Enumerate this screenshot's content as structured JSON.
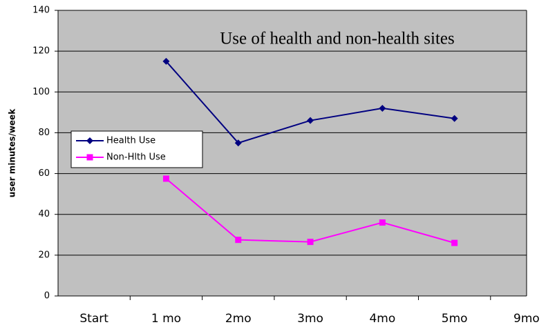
{
  "chart_data": {
    "type": "line",
    "title": "Use of health and non-health sites",
    "y_label": "user minutes/week",
    "categories": [
      "Start",
      "1 mo",
      "2mo",
      "3mo",
      "4mo",
      "5mo",
      "9mo"
    ],
    "series": [
      {
        "name": "Health Use",
        "color": "#000080",
        "marker": "diamond",
        "values": [
          null,
          115,
          75,
          86,
          92,
          87,
          null
        ]
      },
      {
        "name": "Non-Hlth Use",
        "color": "#ff00ff",
        "marker": "square",
        "values": [
          null,
          57.5,
          27.5,
          26.5,
          36,
          26,
          null
        ]
      }
    ],
    "ylim": [
      0,
      140
    ],
    "yticks": [
      0,
      20,
      40,
      60,
      80,
      100,
      120,
      140
    ],
    "grid": true,
    "legend": "left"
  }
}
